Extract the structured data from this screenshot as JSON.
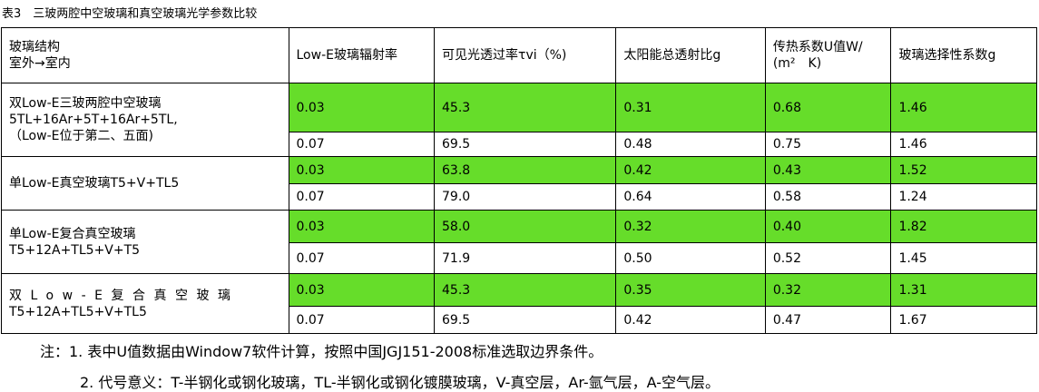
{
  "caption": "表3　三玻两腔中空玻璃和真空玻璃光学参数比较",
  "headers": [
    [
      "玻璃结构",
      "室外→室内"
    ],
    [
      "Low-E玻璃辐射率"
    ],
    [
      "可见光透过率τvi（%)"
    ],
    [
      "太阳能总透射比g"
    ],
    [
      "传热系数U值W/",
      "(m²　K)"
    ],
    [
      "玻璃选择性系数g"
    ]
  ],
  "groups": [
    {
      "label": [
        "双Low-E三玻两腔中空玻璃",
        "5TL+16Ar+5T+16Ar+5TL,",
        "（Low-E位于第二、五面)"
      ],
      "rows": [
        [
          "0.03",
          "45.3",
          "0.31",
          "0.68",
          "1.46"
        ],
        [
          "0.07",
          "69.5",
          "0.48",
          "0.75",
          "1.46"
        ]
      ]
    },
    {
      "label": [
        "单Low-E真空玻璃T5+V+TL5"
      ],
      "rows": [
        [
          "0.03",
          "63.8",
          "0.42",
          "0.43",
          "1.52"
        ],
        [
          "0.07",
          "79.0",
          "0.64",
          "0.58",
          "1.24"
        ]
      ]
    },
    {
      "label": [
        "单Low-E复合真空玻璃",
        "T5+12A+TL5+V+T5"
      ],
      "rows": [
        [
          "0.03",
          "58.0",
          "0.32",
          "0.40",
          "1.82"
        ],
        [
          "0.07",
          "71.9",
          "0.50",
          "0.52",
          "1.45"
        ]
      ]
    },
    {
      "label": [
        "双Low-E复合真空玻璃",
        "T5+12A+TL5+V+TL5"
      ],
      "rows": [
        [
          "0.03",
          "45.3",
          "0.35",
          "0.32",
          "1.31"
        ],
        [
          "0.07",
          "69.5",
          "0.42",
          "0.47",
          "1.67"
        ]
      ]
    }
  ],
  "notes": [
    "注：1. 表中U值数据由Window7软件计算，按照中国JGJ151-2008标准选取边界条件。",
    "2. 代号意义：T-半钢化或钢化玻璃，TL-半钢化或钢化镀膜玻璃，V-真空层，Ar-氩气层，A-空气层。"
  ]
}
